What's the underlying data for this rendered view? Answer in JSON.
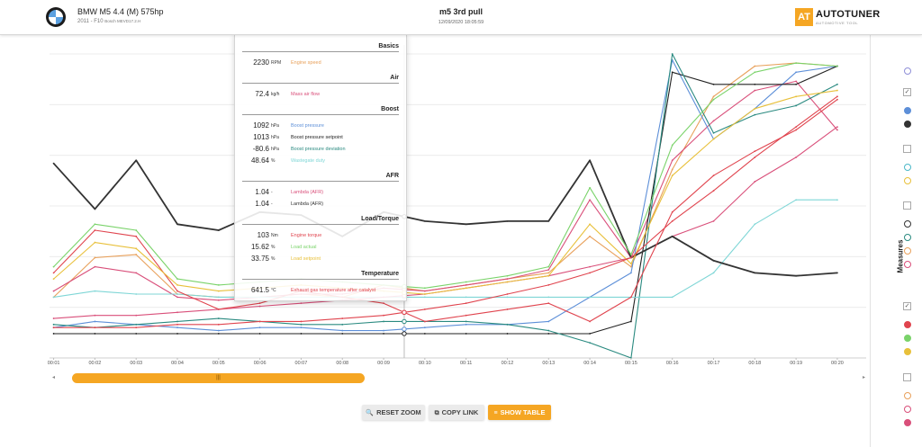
{
  "header": {
    "car_name": "BMW M5 4.4 (M) 575hp",
    "car_year_platform": "2011 - F10",
    "car_ecu": "Bosch MEVD17.2.H",
    "log_title": "m5 3rd pull",
    "log_date": "12/09/2020 18:05:59",
    "brand_mark": "AT",
    "brand_name": "AUTOTUNER",
    "brand_tagline": "AUTOMOTIVE TOOL"
  },
  "colors": {
    "accent": "#f5a623"
  },
  "legend": {
    "sections": [
      {
        "title": "Basics",
        "rows": [
          {
            "value": "2230",
            "unit": "RPM",
            "label": "Engine speed",
            "color": "#e8a05a"
          }
        ]
      },
      {
        "title": "Air",
        "rows": [
          {
            "value": "72.4",
            "unit": "kg/h",
            "label": "Mass air flow",
            "color": "#d94f7a"
          }
        ]
      },
      {
        "title": "Boost",
        "rows": [
          {
            "value": "1092",
            "unit": "hPa",
            "label": "Boost pressure",
            "color": "#5d8fd8"
          },
          {
            "value": "1013",
            "unit": "hPa",
            "label": "Boost pressure setpoint",
            "color": "#222222"
          },
          {
            "value": "-80.6",
            "unit": "hPa",
            "label": "Boost pressure deviation",
            "color": "#2a8a80"
          },
          {
            "value": "48.64",
            "unit": "%",
            "label": "Wastegate duty",
            "color": "#7fd6d6"
          }
        ]
      },
      {
        "title": "AFR",
        "rows": [
          {
            "value": "1.04",
            "unit": "-",
            "label": "Lambda (AFR)",
            "color": "#d94f7a"
          },
          {
            "value": "1.04",
            "unit": "-",
            "label": "Lambda (AFR)",
            "color": "#333333"
          }
        ]
      },
      {
        "title": "Load/Torque",
        "rows": [
          {
            "value": "103",
            "unit": "Nm",
            "label": "Engine torque",
            "color": "#e0444e"
          },
          {
            "value": "15.62",
            "unit": "%",
            "label": "Load actual",
            "color": "#7ad36a"
          },
          {
            "value": "33.75",
            "unit": "%",
            "label": "Load setpoint",
            "color": "#e8c03a"
          }
        ]
      },
      {
        "title": "Temperature",
        "rows": [
          {
            "value": "641.5",
            "unit": "°C",
            "label": "Exhaust gas temperature after catalyst",
            "color": "#e0444e"
          }
        ]
      }
    ]
  },
  "chart_data": {
    "type": "line",
    "x": [
      1,
      2,
      3,
      4,
      5,
      6,
      7,
      8,
      9,
      10,
      11,
      12,
      13,
      14,
      15,
      16,
      17,
      18,
      19,
      20
    ],
    "x_tick_labels": [
      "00:01",
      "00:02",
      "00:03",
      "00:04",
      "00:05",
      "00:06",
      "00:07",
      "00:08",
      "00:09",
      "00:10",
      "00:11",
      "00:12",
      "00:13",
      "00:14",
      "00:15",
      "00:16",
      "00:17",
      "00:18",
      "00:19",
      "00:20"
    ],
    "xlim": [
      0.9,
      20.7
    ],
    "grid": "horizontal",
    "cursor_x": 9.5,
    "series": [
      {
        "name": "Engine speed",
        "color": "#e8a05a",
        "values": [
          20,
          33,
          34,
          21,
          20,
          20,
          21,
          20,
          24,
          22,
          24,
          26,
          28,
          40,
          30,
          62,
          86,
          96,
          97,
          96
        ]
      },
      {
        "name": "Mass air flow",
        "color": "#d94f7a",
        "values": [
          22,
          30,
          28,
          20,
          19,
          20,
          21,
          21,
          23,
          22,
          24,
          26,
          29,
          52,
          33,
          65,
          78,
          88,
          91,
          75
        ]
      },
      {
        "name": "Boost pressure",
        "color": "#5d8fd8",
        "values": [
          10,
          12,
          11,
          10,
          9,
          10,
          10,
          9,
          9,
          10,
          11,
          11,
          12,
          20,
          28,
          98,
          72,
          82,
          94,
          96
        ]
      },
      {
        "name": "Boost pressure setpoint",
        "color": "#222222",
        "values": [
          8,
          8,
          8,
          8,
          8,
          8,
          8,
          8,
          8,
          8,
          8,
          8,
          8,
          8,
          12,
          94,
          90,
          90,
          90,
          96
        ]
      },
      {
        "name": "Boost pressure deviation",
        "color": "#2a8a80",
        "values": [
          11,
          10,
          11,
          12,
          13,
          12,
          11,
          11,
          12,
          12,
          12,
          11,
          9,
          5,
          0,
          100,
          74,
          80,
          83,
          90
        ]
      },
      {
        "name": "Wastegate duty",
        "color": "#7fd6d6",
        "values": [
          20,
          22,
          21,
          21,
          20,
          20,
          20,
          20,
          20,
          20,
          20,
          20,
          20,
          20,
          20,
          20,
          28,
          44,
          52,
          52
        ]
      },
      {
        "name": "Lambda (AFR)",
        "color": "#d94f7a",
        "values": [
          13,
          14,
          14,
          15,
          16,
          17,
          18,
          19,
          20,
          21,
          23,
          25,
          27,
          30,
          33,
          40,
          45,
          58,
          66,
          76
        ]
      },
      {
        "name": "Lambda (AFR)",
        "color": "#333333",
        "values": [
          64,
          49,
          65,
          44,
          42,
          48,
          47,
          40,
          48,
          45,
          44,
          45,
          45,
          65,
          33,
          40,
          32,
          28,
          27,
          28
        ]
      },
      {
        "name": "Engine torque",
        "color": "#e0444e",
        "values": [
          28,
          42,
          40,
          22,
          16,
          18,
          22,
          20,
          18,
          12,
          14,
          16,
          18,
          12,
          20,
          48,
          60,
          68,
          75,
          85
        ]
      },
      {
        "name": "Load actual",
        "color": "#7ad36a",
        "values": [
          30,
          44,
          42,
          26,
          24,
          25,
          26,
          25,
          24,
          23,
          25,
          27,
          30,
          56,
          34,
          70,
          85,
          94,
          97,
          96
        ]
      },
      {
        "name": "Load setpoint",
        "color": "#e8c03a",
        "values": [
          26,
          38,
          36,
          24,
          22,
          23,
          24,
          23,
          22,
          21,
          23,
          25,
          27,
          44,
          31,
          60,
          72,
          82,
          86,
          88
        ]
      },
      {
        "name": "Exhaust gas temperature after catalyst",
        "color": "#e0444e",
        "values": [
          10,
          10,
          10,
          11,
          11,
          12,
          12,
          13,
          14,
          16,
          18,
          21,
          24,
          28,
          33,
          45,
          55,
          66,
          76,
          86
        ]
      }
    ]
  },
  "sidebar": {
    "title": "Measures",
    "checkbox_mark": "✓"
  },
  "scrollbar": {
    "left_arrow": "◂",
    "right_arrow": "▸",
    "grip": "|||",
    "position": 0.0,
    "visible_fraction": 0.37
  },
  "buttons": {
    "reset_zoom": "RESET ZOOM",
    "copy_link": "COPY LINK",
    "show_table": "SHOW TABLE"
  }
}
